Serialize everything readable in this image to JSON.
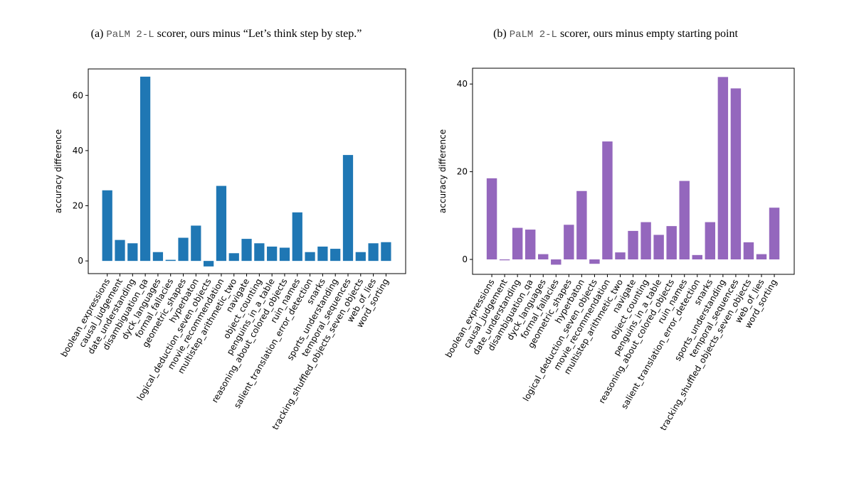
{
  "chart_data": [
    {
      "type": "bar",
      "caption_label": "(a)",
      "caption_model": "PaLM 2-L",
      "caption_text": "scorer, ours minus “Let’s think step by step.”",
      "ylabel": "accuracy difference",
      "color": "#1f77b4",
      "categories": [
        "boolean_expressions",
        "causal_judgement",
        "date_understanding",
        "disambiguation_qa",
        "dyck_languages",
        "formal_fallacies",
        "geometric_shapes",
        "hyperbaton",
        "logical_deduction_seven_objects",
        "movie_recommendation",
        "multistep_arithmetic_two",
        "navigate",
        "object_counting",
        "penguins_in_a_table",
        "reasoning_about_colored_objects",
        "ruin_names",
        "salient_translation_error_detection",
        "snarks",
        "sports_understanding",
        "temporal_sequences",
        "tracking_shuffled_objects_seven_objects",
        "web_of_lies",
        "word_sorting"
      ],
      "values": [
        25.6,
        7.6,
        6.4,
        66.8,
        3.2,
        0.4,
        8.4,
        12.8,
        -2.0,
        27.2,
        2.8,
        8.0,
        6.4,
        5.2,
        4.8,
        17.6,
        3.2,
        5.2,
        4.4,
        38.4,
        3.2,
        6.4,
        6.8
      ],
      "ylim": [
        -4.6,
        69.6
      ],
      "yticks": [
        0,
        20,
        40,
        60
      ]
    },
    {
      "type": "bar",
      "caption_label": "(b)",
      "caption_model": "PaLM 2-L",
      "caption_text": "scorer, ours minus empty starting point",
      "ylabel": "accuracy difference",
      "color": "#9467bd",
      "categories": [
        "boolean_expressions",
        "causal_judgement",
        "date_understanding",
        "disambiguation_qa",
        "dyck_languages",
        "formal_fallacies",
        "geometric_shapes",
        "hyperbaton",
        "logical_deduction_seven_objects",
        "movie_recommendation",
        "multistep_arithmetic_two",
        "navigate",
        "object_counting",
        "penguins_in_a_table",
        "reasoning_about_colored_objects",
        "ruin_names",
        "salient_translation_error_detection",
        "snarks",
        "sports_understanding",
        "temporal_sequences",
        "tracking_shuffled_objects_seven_objects",
        "web_of_lies",
        "word_sorting"
      ],
      "values": [
        18.5,
        -0.2,
        7.2,
        6.8,
        1.2,
        -1.2,
        7.9,
        15.6,
        -1.0,
        26.9,
        1.6,
        6.5,
        8.5,
        5.6,
        7.6,
        17.9,
        1.0,
        8.5,
        41.6,
        39.0,
        3.9,
        1.2,
        11.8
      ],
      "ylim": [
        -3.4,
        43.6
      ],
      "yticks": [
        0,
        20,
        40
      ]
    }
  ]
}
